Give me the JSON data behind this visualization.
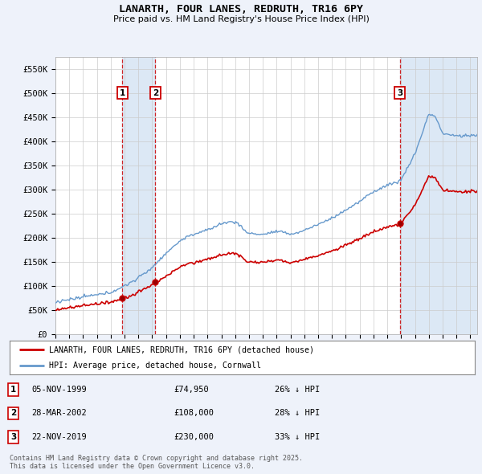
{
  "title": "LANARTH, FOUR LANES, REDRUTH, TR16 6PY",
  "subtitle": "Price paid vs. HM Land Registry's House Price Index (HPI)",
  "ylabel_ticks": [
    "£0",
    "£50K",
    "£100K",
    "£150K",
    "£200K",
    "£250K",
    "£300K",
    "£350K",
    "£400K",
    "£450K",
    "£500K",
    "£550K"
  ],
  "ytick_values": [
    0,
    50000,
    100000,
    150000,
    200000,
    250000,
    300000,
    350000,
    400000,
    450000,
    500000,
    550000
  ],
  "ylim": [
    0,
    575000
  ],
  "xlim_start": 1995.0,
  "xlim_end": 2025.5,
  "sale_points": [
    {
      "label": "1",
      "date": "05-NOV-1999",
      "year": 1999.85,
      "price": 74950,
      "pct": "26%",
      "dir": "↓"
    },
    {
      "label": "2",
      "date": "28-MAR-2002",
      "year": 2002.23,
      "price": 108000,
      "pct": "28%",
      "dir": "↓"
    },
    {
      "label": "3",
      "date": "22-NOV-2019",
      "year": 2019.9,
      "price": 230000,
      "pct": "33%",
      "dir": "↓"
    }
  ],
  "legend_line1": "LANARTH, FOUR LANES, REDRUTH, TR16 6PY (detached house)",
  "legend_line2": "HPI: Average price, detached house, Cornwall",
  "footer1": "Contains HM Land Registry data © Crown copyright and database right 2025.",
  "footer2": "This data is licensed under the Open Government Licence v3.0.",
  "red_color": "#cc0000",
  "blue_color": "#6699cc",
  "blue_shade": "#dce8f5",
  "background_color": "#eef2fa",
  "plot_bg_color": "#ffffff",
  "grid_color": "#cccccc",
  "vline_color": "#cc0000",
  "box_color": "#cc0000"
}
